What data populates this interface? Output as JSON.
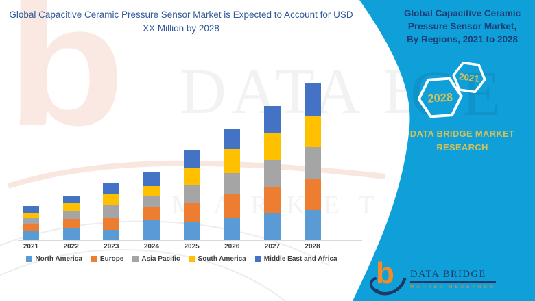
{
  "colors": {
    "accent_cyan": "#0FA0DA",
    "title_blue": "#31599B",
    "sidebar_navy": "#1C3E75",
    "gold": "#D2C05A",
    "logo_orange": "#F28B28",
    "logo_navy": "#1F3864",
    "axis_gray": "#D9D9D9",
    "label_gray": "#3F3F3F"
  },
  "header": {
    "title": "Global Capacitive Ceramic Pressure Sensor Market is Expected to Account for USD XX Million by 2028"
  },
  "sidebar": {
    "heading_lines": [
      "Global Capacitive Ceramic",
      "Pressure Sensor Market,",
      "By Regions, 2021 to 2028"
    ],
    "hexagon_back_label": "2021",
    "hexagon_front_label": "2028",
    "brand": "DATA BRIDGE MARKET RESEARCH"
  },
  "logo": {
    "glyph": "b",
    "name": "DATA BRIDGE",
    "tagline": "MARKET RESEARCH"
  },
  "watermark": {
    "glyph": "b",
    "row1": "DATA BRIDGE",
    "row2": "MARKET RESEARCH"
  },
  "chart_data": {
    "type": "bar",
    "stacked": true,
    "title": "Global Capacitive Ceramic Pressure Sensor Market is Expected to Account for USD XX Million by 2028",
    "value_unit_text": "USD XX Million",
    "categories": [
      "2021",
      "2022",
      "2023",
      "2024",
      "2025",
      "2026",
      "2027",
      "2028"
    ],
    "series": [
      {
        "name": "North America",
        "color": "#5B9BD5",
        "values": [
          13,
          18,
          15,
          29,
          27,
          32,
          39,
          44
        ]
      },
      {
        "name": "Europe",
        "color": "#ED7D31",
        "values": [
          10,
          13,
          18,
          20,
          27,
          36,
          39,
          46
        ]
      },
      {
        "name": "Asia Pacific",
        "color": "#A5A5A5",
        "values": [
          9,
          12,
          18,
          15,
          27,
          30,
          39,
          46
        ]
      },
      {
        "name": "South America",
        "color": "#FFC000",
        "values": [
          8,
          11,
          16,
          15,
          25,
          35,
          39,
          46
        ]
      },
      {
        "name": "Middle East and Africa",
        "color": "#4472C4",
        "values": [
          10,
          11,
          16,
          20,
          26,
          30,
          40,
          47
        ]
      }
    ],
    "xlabel": "",
    "ylabel": "",
    "value_axis_labels_shown": false,
    "data_labels_shown": false,
    "grid": false,
    "legend_position": "bottom",
    "series_totals_relative": [
      50,
      65,
      83,
      99,
      132,
      163,
      196,
      229
    ]
  }
}
